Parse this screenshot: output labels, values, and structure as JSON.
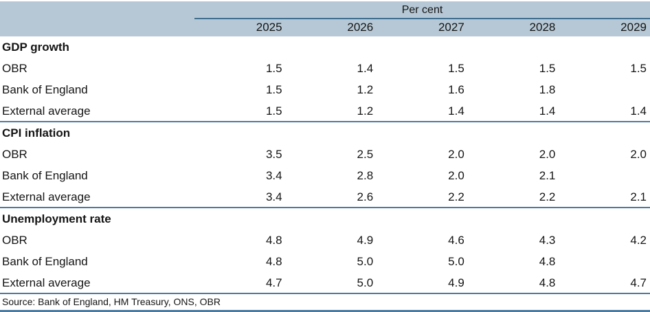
{
  "table": {
    "unit_header": "Per cent",
    "years": [
      "2025",
      "2026",
      "2027",
      "2028",
      "2029"
    ],
    "sections": [
      {
        "title": "GDP growth",
        "rows": [
          {
            "label": "OBR",
            "values": [
              "1.5",
              "1.4",
              "1.5",
              "1.5",
              "1.5"
            ]
          },
          {
            "label": "Bank of England",
            "values": [
              "1.5",
              "1.2",
              "1.6",
              "1.8",
              ""
            ]
          },
          {
            "label": "External average",
            "values": [
              "1.5",
              "1.2",
              "1.4",
              "1.4",
              "1.4"
            ]
          }
        ]
      },
      {
        "title": "CPI inflation",
        "rows": [
          {
            "label": "OBR",
            "values": [
              "3.5",
              "2.5",
              "2.0",
              "2.0",
              "2.0"
            ]
          },
          {
            "label": "Bank of England",
            "values": [
              "3.4",
              "2.8",
              "2.0",
              "2.1",
              ""
            ]
          },
          {
            "label": "External average",
            "values": [
              "3.4",
              "2.6",
              "2.2",
              "2.2",
              "2.1"
            ]
          }
        ]
      },
      {
        "title": "Unemployment rate",
        "rows": [
          {
            "label": "OBR",
            "values": [
              "4.8",
              "4.9",
              "4.6",
              "4.3",
              "4.2"
            ]
          },
          {
            "label": "Bank of England",
            "values": [
              "4.8",
              "5.0",
              "5.0",
              "4.8",
              ""
            ]
          },
          {
            "label": "External average",
            "values": [
              "4.7",
              "5.0",
              "4.9",
              "4.8",
              "4.7"
            ]
          }
        ]
      }
    ],
    "source": "Source: Bank of England, HM Treasury, ONS, OBR",
    "colors": {
      "header_band": "#b6c8d5",
      "rule_dark": "#3e6d8e",
      "rule_section": "#4a7a9e",
      "text": "#141414"
    }
  }
}
